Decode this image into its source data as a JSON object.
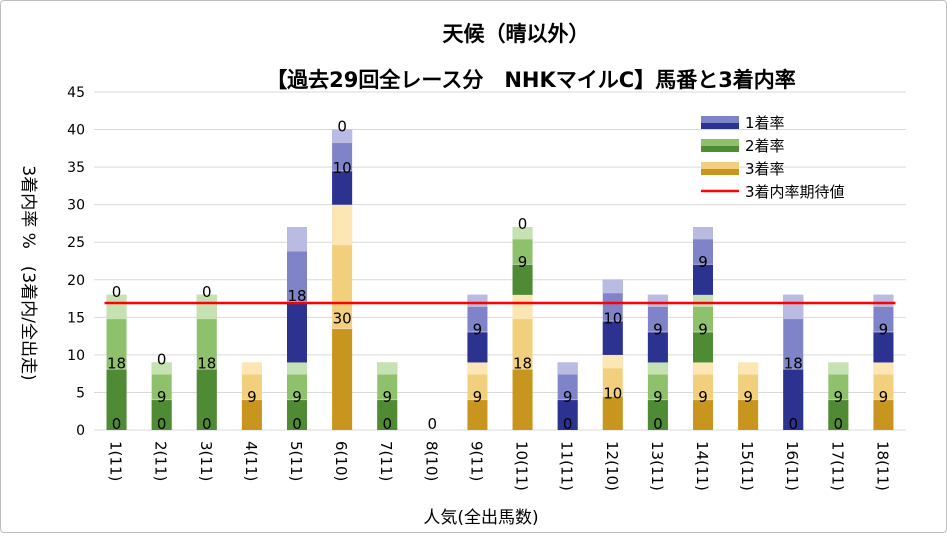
{
  "chart_data": {
    "type": "bar",
    "stacked": true,
    "title": "天候（晴以外）",
    "subtitle": "【過去29回全レース分　NHKマイルC】馬番と3着内率",
    "xlabel": "人気(全出馬数)",
    "ylabel": "3着内率 %　(3着内/全出走)",
    "ylim": [
      0,
      45
    ],
    "yticks": [
      0,
      5,
      10,
      15,
      20,
      25,
      30,
      35,
      40,
      45
    ],
    "grid": true,
    "legend_position": "top-right",
    "categories": [
      "1(11)",
      "2(11)",
      "3(11)",
      "4(11)",
      "5(11)",
      "6(10)",
      "7(11)",
      "8(10)",
      "9(11)",
      "10(11)",
      "11(11)",
      "12(10)",
      "13(11)",
      "14(11)",
      "15(11)",
      "16(11)",
      "17(11)",
      "18(11)"
    ],
    "series": [
      {
        "name": "3着率",
        "values": [
          0,
          0,
          0,
          9,
          0,
          30,
          0,
          0,
          9,
          18,
          0,
          10,
          0,
          9,
          9,
          0,
          0,
          9
        ],
        "color": "#d9a520"
      },
      {
        "name": "2着率",
        "values": [
          18,
          9,
          18,
          0,
          9,
          0,
          9,
          0,
          0,
          9,
          0,
          0,
          9,
          9,
          0,
          0,
          9,
          0
        ],
        "color": "#5a9a3a"
      },
      {
        "name": "1着率",
        "values": [
          0,
          0,
          0,
          0,
          18,
          10,
          0,
          0,
          9,
          0,
          9,
          10,
          9,
          9,
          0,
          18,
          0,
          9
        ],
        "color": "#3b3f9e"
      }
    ],
    "reference_line": {
      "name": "3着内率期待値",
      "value": 16.9,
      "color": "#ff0000"
    },
    "top_zero_labels": [
      0,
      1,
      2,
      5,
      9
    ]
  }
}
